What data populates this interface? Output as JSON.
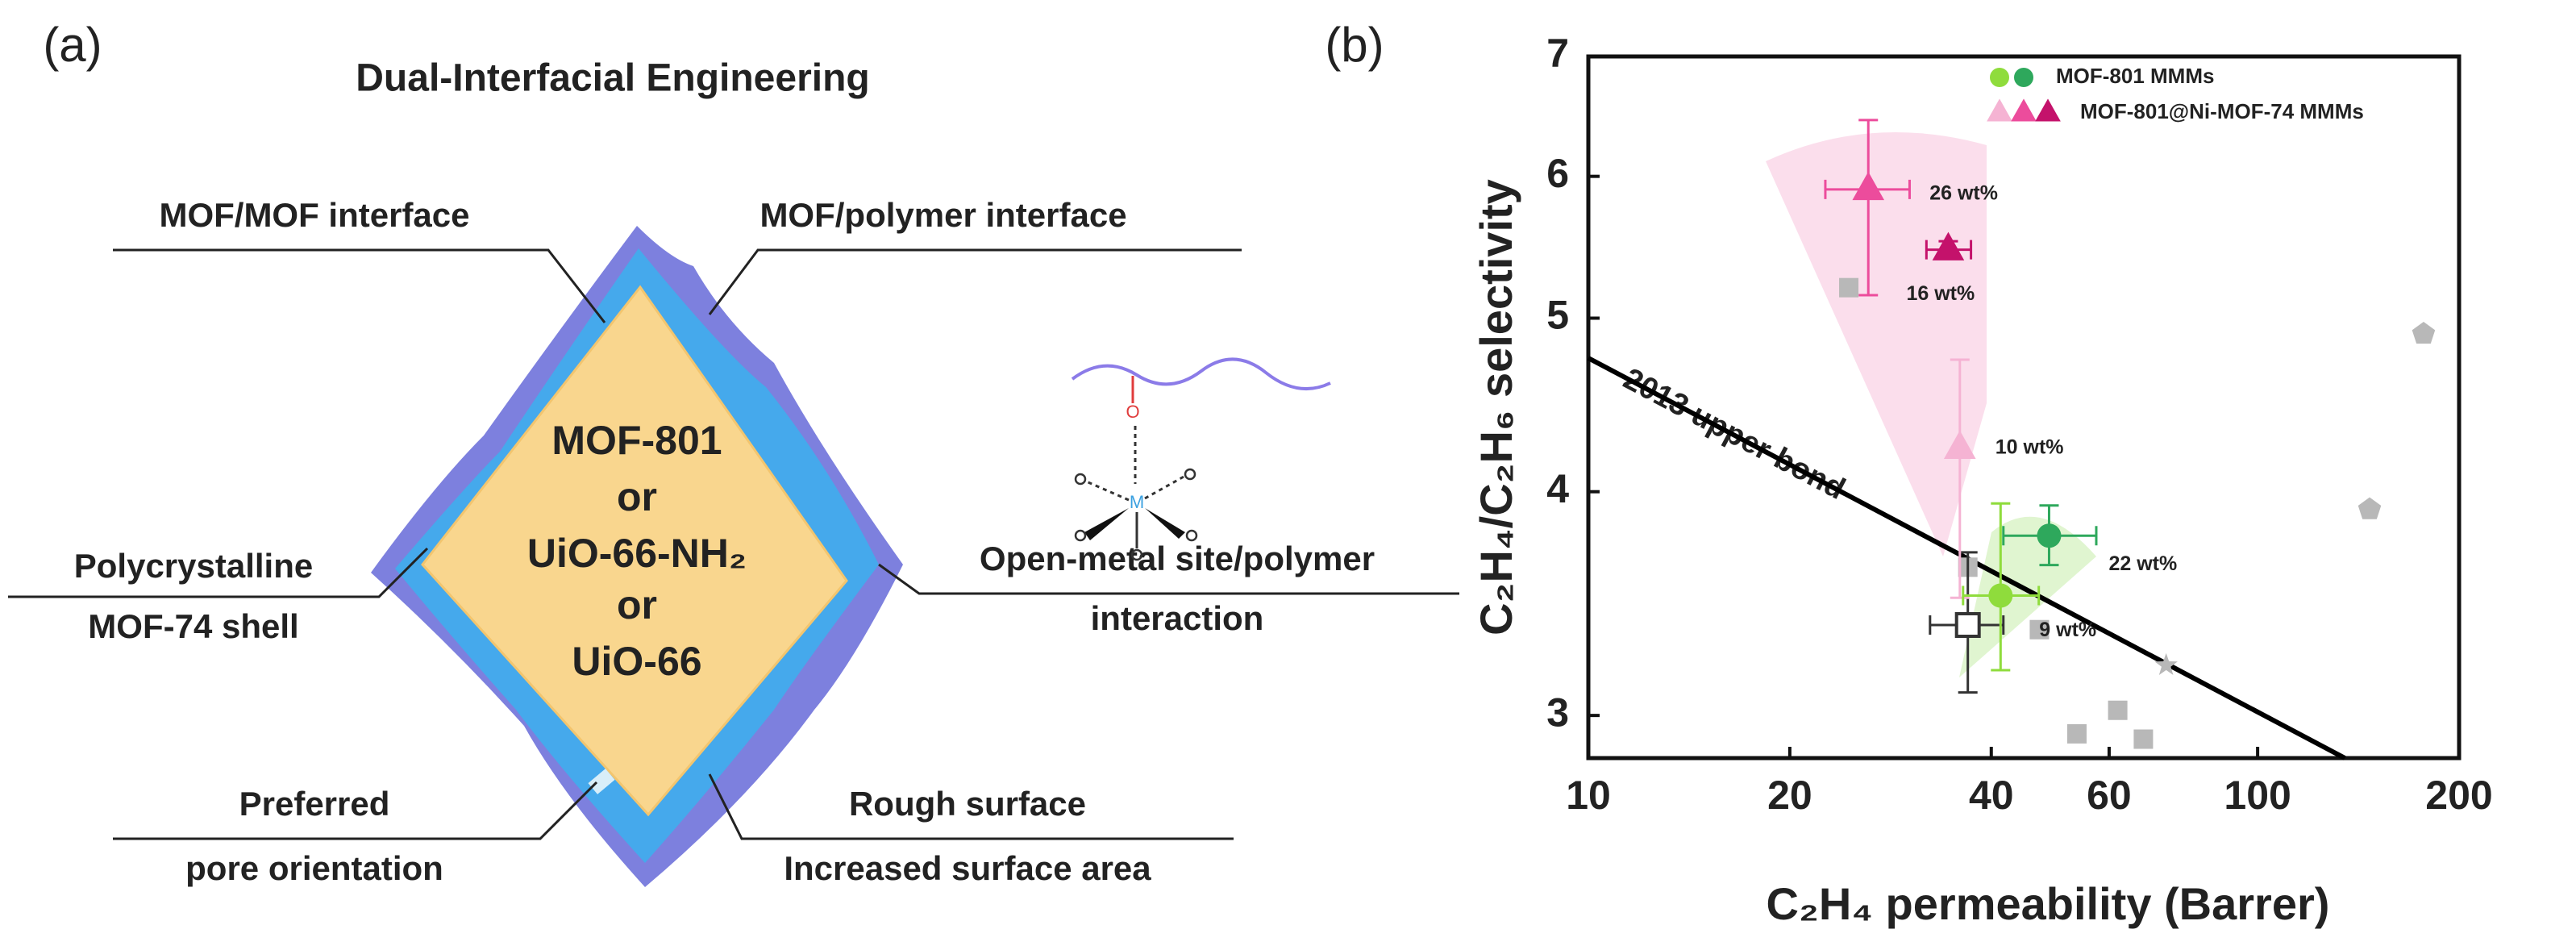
{
  "panel_a": {
    "label": "(a)",
    "title": "Dual-Interfacial Engineering",
    "core": [
      "MOF-801",
      "or",
      "UiO-66-NH₂",
      "or",
      "UiO-66"
    ],
    "callouts": {
      "mof_mof": "MOF/MOF interface",
      "mof_polymer": "MOF/polymer interface",
      "shell": [
        "Polycrystalline",
        "MOF-74 shell"
      ],
      "open_metal": [
        "Open-metal site/polymer",
        "interaction"
      ],
      "orientation": [
        "Preferred",
        "pore orientation"
      ],
      "surface": [
        "Rough surface",
        "Increased surface area"
      ]
    },
    "molecule": {
      "oxygen": "O",
      "metal": "M"
    }
  },
  "chart_data": {
    "type": "scatter",
    "panel_label": "(b)",
    "xlabel": "C₂H₄ permeability (Barrer)",
    "ylabel": "C₂H₄/C₂H₆ selectivity",
    "xscale": "log",
    "yscale": "log",
    "xlim": [
      10,
      200
    ],
    "ylim": [
      2.84,
      7
    ],
    "xticks": [
      10,
      20,
      40,
      60,
      100,
      200
    ],
    "yticks": [
      3,
      4,
      5,
      6,
      7
    ],
    "legend": "upper right",
    "upper_bound": {
      "label": "2013 upper bond",
      "x": [
        10,
        135
      ],
      "y": [
        4.75,
        2.84
      ],
      "color": "#000000"
    },
    "series": [
      {
        "name": "MOF-801 MMMs",
        "marker": "circle",
        "points": [
          {
            "x": 41.3,
            "y": 3.5,
            "xerr": [
              36.3,
              47.1
            ],
            "yerr": [
              3.18,
              3.94
            ],
            "color": "#8fdc3c",
            "label": "9 wt%"
          },
          {
            "x": 48.8,
            "y": 3.78,
            "xerr": [
              41.7,
              57.4
            ],
            "yerr": [
              3.64,
              3.93
            ],
            "color": "#2ea85c",
            "label": "22 wt%"
          }
        ]
      },
      {
        "name": "MOF-801@Ni-MOF-74 MMMs",
        "marker": "triangle",
        "points": [
          {
            "x": 35.9,
            "y": 4.23,
            "yerr": [
              3.49,
              4.74
            ],
            "color": "#f5b3d3",
            "label": "10 wt%"
          },
          {
            "x": 26.2,
            "y": 5.9,
            "xerr": [
              22.6,
              30.2
            ],
            "yerr": [
              5.15,
              6.45
            ],
            "color": "#ec4c9c",
            "label": "26 wt%"
          },
          {
            "x": 34.5,
            "y": 5.46,
            "xerr": [
              32,
              37.3
            ],
            "yerr": [
              5.4,
              5.52
            ],
            "color": "#c4126b",
            "label": "16 wt%"
          }
        ]
      },
      {
        "marker": "open-square",
        "color": "#333333",
        "points": [
          {
            "x": 36.9,
            "y": 3.37,
            "xerr": [
              32.4,
              41.7
            ],
            "yerr": [
              3.09,
              3.7
            ]
          }
        ]
      },
      {
        "color": "#b8b8b8",
        "points": [
          {
            "x": 24.5,
            "y": 5.2,
            "marker": "square"
          },
          {
            "x": 177,
            "y": 4.9,
            "marker": "pentagon"
          },
          {
            "x": 147,
            "y": 3.91,
            "marker": "pentagon"
          },
          {
            "x": 73,
            "y": 3.2,
            "marker": "star"
          },
          {
            "x": 61.8,
            "y": 3.02,
            "marker": "square"
          },
          {
            "x": 53.7,
            "y": 2.93,
            "marker": "square"
          },
          {
            "x": 67.5,
            "y": 2.91,
            "marker": "square"
          },
          {
            "x": 36.9,
            "y": 3.63,
            "marker": "square"
          },
          {
            "x": 47.2,
            "y": 3.35,
            "marker": "square"
          }
        ]
      }
    ]
  }
}
